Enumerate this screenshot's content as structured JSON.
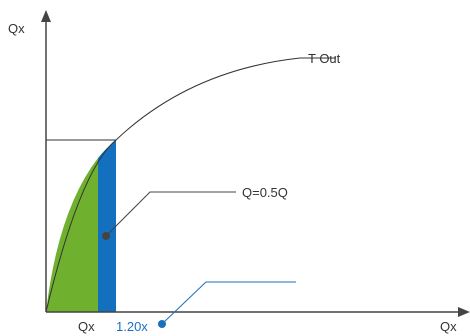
{
  "diagram": {
    "y_axis_label": "Qx",
    "x_axis_label": "Qx",
    "curve_label": "T Out",
    "callout_value": "Q=0.5Q",
    "tick_label_left": "Qx",
    "tick_label_blue": "1.20x",
    "colors": {
      "axis": "#444444",
      "curve": "#333333",
      "green_area": "#6fb02f",
      "blue_band": "#1270bf",
      "label_blue": "#1a6fbf",
      "label_dark": "#333333",
      "callout_line": "#444444"
    }
  }
}
